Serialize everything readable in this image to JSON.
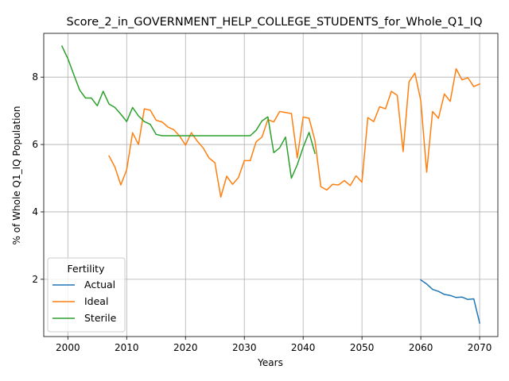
{
  "chart_data": {
    "type": "line",
    "title": "Score_2_in_GOVERNMENT_HELP_COLLEGE_STUDENTS_for_Whole_Q1_IQ",
    "xlabel": "Years",
    "ylabel": "% of Whole Q1_IQ Population",
    "xlim": [
      1995.9,
      2073.1
    ],
    "ylim": [
      0.3,
      9.3
    ],
    "xticks": [
      2000,
      2010,
      2020,
      2030,
      2040,
      2050,
      2060,
      2070
    ],
    "yticks": [
      2,
      4,
      6,
      8
    ],
    "grid": true,
    "legend": {
      "title": "Fertility",
      "placement": "lower-left"
    },
    "series": [
      {
        "name": "Actual",
        "color": "#1f77b4",
        "x": [
          2060,
          2061,
          2062,
          2063,
          2064,
          2065,
          2066,
          2067,
          2068,
          2069,
          2070
        ],
        "y": [
          1.98,
          1.86,
          1.7,
          1.64,
          1.55,
          1.52,
          1.46,
          1.47,
          1.4,
          1.42,
          0.7
        ]
      },
      {
        "name": "Ideal",
        "color": "#ff7f0e",
        "x": [
          2007,
          2008,
          2009,
          2010,
          2011,
          2012,
          2013,
          2014,
          2015,
          2016,
          2017,
          2018,
          2019,
          2020,
          2021,
          2022,
          2023,
          2024,
          2025,
          2026,
          2027,
          2028,
          2029,
          2030,
          2031,
          2032,
          2033,
          2034,
          2035,
          2036,
          2037,
          2038,
          2039,
          2040,
          2041,
          2042,
          2043,
          2044,
          2045,
          2046,
          2047,
          2048,
          2049,
          2050,
          2051,
          2052,
          2053,
          2054,
          2055,
          2056,
          2057,
          2058,
          2059,
          2060,
          2061,
          2062,
          2063,
          2064,
          2065,
          2066,
          2067,
          2068,
          2069,
          2070
        ],
        "y": [
          5.66,
          5.33,
          4.8,
          5.25,
          6.35,
          6.0,
          7.06,
          7.02,
          6.72,
          6.67,
          6.52,
          6.44,
          6.25,
          5.98,
          6.35,
          6.1,
          5.9,
          5.6,
          5.46,
          4.44,
          5.06,
          4.82,
          5.02,
          5.52,
          5.52,
          6.08,
          6.22,
          6.74,
          6.67,
          6.98,
          6.95,
          6.92,
          5.6,
          6.82,
          6.78,
          6.12,
          4.75,
          4.65,
          4.82,
          4.8,
          4.93,
          4.78,
          5.07,
          4.88,
          6.8,
          6.68,
          7.12,
          7.06,
          7.58,
          7.46,
          5.79,
          7.86,
          8.12,
          7.3,
          5.18,
          6.98,
          6.78,
          7.5,
          7.28,
          8.25,
          7.92,
          7.98,
          7.72,
          7.8
        ]
      },
      {
        "name": "Sterile",
        "color": "#2ca02c",
        "x": [
          1999,
          2000,
          2001,
          2002,
          2003,
          2004,
          2005,
          2006,
          2007,
          2008,
          2009,
          2010,
          2011,
          2012,
          2013,
          2014,
          2015,
          2016,
          2017,
          2018,
          2019,
          2020,
          2021,
          2022,
          2023,
          2024,
          2025,
          2026,
          2027,
          2028,
          2029,
          2030,
          2031,
          2032,
          2033,
          2034,
          2035,
          2036,
          2037,
          2038,
          2039,
          2040,
          2041,
          2042
        ],
        "y": [
          8.92,
          8.55,
          8.08,
          7.62,
          7.38,
          7.38,
          7.15,
          7.58,
          7.2,
          7.1,
          6.9,
          6.68,
          7.1,
          6.85,
          6.68,
          6.6,
          6.3,
          6.26,
          6.26,
          6.26,
          6.26,
          6.26,
          6.26,
          6.26,
          6.26,
          6.26,
          6.26,
          6.26,
          6.26,
          6.26,
          6.26,
          6.26,
          6.26,
          6.42,
          6.7,
          6.82,
          5.76,
          5.9,
          6.22,
          5.0,
          5.4,
          5.92,
          6.36,
          5.74
        ]
      }
    ]
  }
}
